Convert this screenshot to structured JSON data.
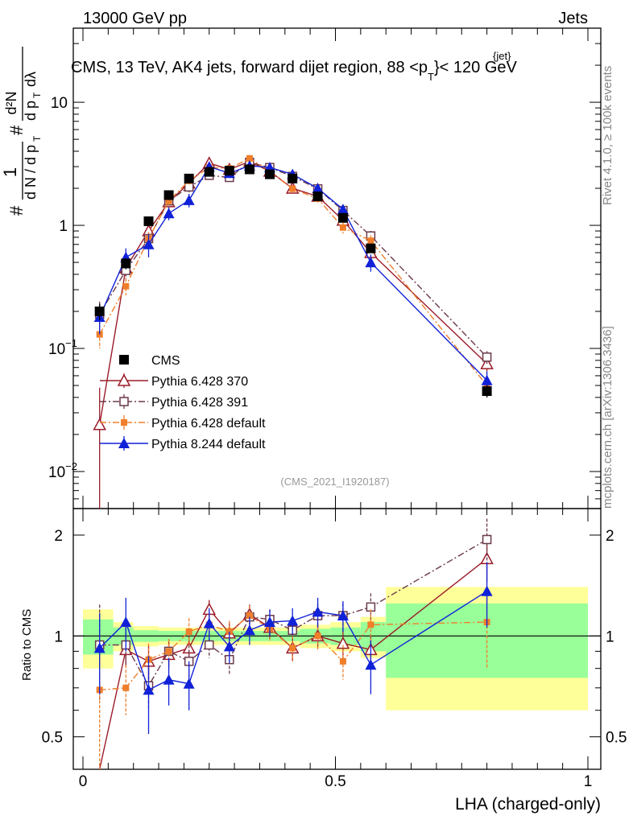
{
  "header": {
    "left": "13000 GeV pp",
    "right": "Jets"
  },
  "title": {
    "main": "CMS, 13 TeV, AK4 jets, forward dijet region, 88 <p",
    "sup": "{jet}",
    "sub": "T",
    "tail": "}< 120 GeV"
  },
  "side_label_top": "Rivet 4.1.0, ≥ 100k events",
  "side_label_bottom": "mcplots.cern.ch [arXiv:1306.3436]",
  "analysis_tag": "(CMS_2021_I1920187)",
  "ylabel_main": {
    "hash": "#",
    "frac1_num": "1",
    "frac1_den": "d N / d p",
    "frac1_den_sub": "T",
    "hash2": "#",
    "frac2_num": "d²N",
    "frac2_den": "d p",
    "frac2_den_sub": "T",
    "frac2_den_tail": "dλ"
  },
  "ratio_ylabel": "Ratio to CMS",
  "xlabel": "LHA (charged-only)",
  "y_ticks_main": [
    {
      "value": 0.01,
      "label": "10",
      "sup": "−2"
    },
    {
      "value": 0.1,
      "label": "10",
      "sup": "−1"
    },
    {
      "value": 1,
      "label": "1",
      "sup": ""
    },
    {
      "value": 10,
      "label": "10",
      "sup": ""
    }
  ],
  "y_ticks_ratio": [
    {
      "value": 0.5,
      "label": "0.5"
    },
    {
      "value": 1,
      "label": "1"
    },
    {
      "value": 2,
      "label": "2"
    }
  ],
  "x_ticks": [
    {
      "value": 0,
      "label": "0"
    },
    {
      "value": 0.5,
      "label": "0.5"
    },
    {
      "value": 1,
      "label": "1"
    }
  ],
  "colors": {
    "data": "#000000",
    "p370": "#9b1c2a",
    "p391": "#6b3a4a",
    "p6def": "#f07e2a",
    "p8": "#1021d8",
    "band_inner": "#99ff99",
    "band_outer": "#ffff99"
  },
  "chart_data": {
    "type": "scatter",
    "xlim": [
      0,
      1
    ],
    "ylim_main": [
      0.005,
      40
    ],
    "ylim_ratio": [
      0.4,
      2.4
    ],
    "y_scale": "log",
    "x": [
      0.033,
      0.085,
      0.13,
      0.17,
      0.21,
      0.25,
      0.29,
      0.33,
      0.37,
      0.415,
      0.465,
      0.515,
      0.57,
      0.8
    ],
    "bin_edges": [
      0,
      0.06,
      0.1,
      0.15,
      0.2,
      0.23,
      0.27,
      0.31,
      0.35,
      0.39,
      0.43,
      0.49,
      0.55,
      0.6,
      1.0
    ],
    "series": [
      {
        "name": "CMS",
        "key": "data",
        "marker": "square-filled",
        "values": [
          0.2,
          0.49,
          1.08,
          1.76,
          2.4,
          2.72,
          2.78,
          2.85,
          2.6,
          2.4,
          1.72,
          1.15,
          0.65,
          0.045
        ],
        "errors": [
          0.03,
          0.05,
          0.08,
          0.1,
          0.14,
          0.15,
          0.15,
          0.15,
          0.14,
          0.13,
          0.1,
          0.08,
          0.05,
          0.005
        ],
        "ratio": [
          1,
          1,
          1,
          1,
          1,
          1,
          1,
          1,
          1,
          1,
          1,
          1,
          1,
          1
        ],
        "ratio_err_inner": [
          0.12,
          0.06,
          0.04,
          0.035,
          0.035,
          0.035,
          0.035,
          0.035,
          0.035,
          0.035,
          0.05,
          0.06,
          0.1,
          0.25
        ],
        "ratio_err_outer": [
          0.2,
          0.1,
          0.07,
          0.06,
          0.06,
          0.06,
          0.06,
          0.06,
          0.06,
          0.06,
          0.08,
          0.1,
          0.14,
          0.4
        ]
      },
      {
        "name": "Pythia 6.428 370",
        "key": "p370",
        "marker": "triangle-open",
        "line": "solid",
        "values": [
          0.024,
          0.45,
          0.9,
          1.55,
          2.2,
          3.2,
          2.85,
          3.3,
          2.75,
          2.0,
          1.72,
          1.1,
          0.6,
          0.075
        ],
        "errors": [
          0.024,
          0.05,
          0.1,
          0.12,
          0.2,
          0.2,
          0.2,
          0.2,
          0.2,
          0.15,
          0.12,
          0.1,
          0.06,
          0.01
        ],
        "ratio": [
          0.12,
          0.91,
          0.84,
          0.88,
          0.92,
          1.2,
          1.02,
          1.16,
          1.06,
          0.92,
          1.0,
          0.95,
          0.91,
          1.7
        ],
        "ratio_err": [
          0.12,
          0.1,
          0.1,
          0.08,
          0.1,
          0.08,
          0.08,
          0.08,
          0.08,
          0.08,
          0.08,
          0.1,
          0.1,
          0.25
        ]
      },
      {
        "name": "Pythia 6.428 391",
        "key": "p391",
        "marker": "square-open",
        "line": "dashdot",
        "values": [
          0.19,
          0.43,
          0.78,
          1.58,
          2.05,
          2.55,
          2.45,
          3.25,
          2.95,
          2.5,
          1.98,
          1.32,
          0.82,
          0.085
        ],
        "errors": [
          0.05,
          0.06,
          0.1,
          0.12,
          0.2,
          0.2,
          0.2,
          0.2,
          0.2,
          0.15,
          0.12,
          0.1,
          0.08,
          0.01
        ],
        "ratio": [
          0.94,
          0.94,
          0.71,
          0.9,
          0.84,
          0.94,
          0.85,
          1.14,
          1.12,
          1.04,
          1.15,
          1.15,
          1.22,
          1.94
        ],
        "ratio_err": [
          0.3,
          0.12,
          0.1,
          0.08,
          0.1,
          0.08,
          0.08,
          0.08,
          0.08,
          0.08,
          0.1,
          0.1,
          0.12,
          0.3
        ]
      },
      {
        "name": "Pythia 6.428 default",
        "key": "p6def",
        "marker": "square-filled",
        "line": "dashdot",
        "values": [
          0.13,
          0.32,
          0.78,
          1.58,
          2.3,
          2.95,
          2.9,
          3.5,
          2.75,
          1.98,
          1.65,
          0.96,
          0.75,
          0.05
        ],
        "errors": [
          0.03,
          0.05,
          0.1,
          0.12,
          0.2,
          0.2,
          0.2,
          0.2,
          0.2,
          0.15,
          0.12,
          0.1,
          0.08,
          0.01
        ],
        "ratio": [
          0.69,
          0.7,
          0.85,
          0.9,
          1.03,
          1.08,
          1.03,
          1.15,
          1.05,
          0.92,
          1.0,
          0.84,
          1.08,
          1.1
        ],
        "ratio_err": [
          0.3,
          0.12,
          0.1,
          0.08,
          0.1,
          0.08,
          0.08,
          0.08,
          0.08,
          0.08,
          0.1,
          0.1,
          0.12,
          0.3
        ]
      },
      {
        "name": "Pythia 8.244 default",
        "key": "p8",
        "marker": "triangle-filled",
        "line": "solid",
        "values": [
          0.18,
          0.55,
          0.7,
          1.25,
          1.6,
          3.0,
          2.65,
          3.05,
          2.95,
          2.6,
          2.0,
          1.35,
          0.5,
          0.055
        ],
        "errors": [
          0.05,
          0.1,
          0.15,
          0.15,
          0.2,
          0.2,
          0.2,
          0.2,
          0.2,
          0.15,
          0.12,
          0.1,
          0.08,
          0.01
        ],
        "ratio": [
          0.92,
          1.1,
          0.69,
          0.74,
          0.72,
          1.09,
          0.93,
          1.04,
          1.1,
          1.11,
          1.18,
          1.15,
          0.82,
          1.36
        ],
        "ratio_err": [
          0.25,
          0.2,
          0.18,
          0.12,
          0.12,
          0.12,
          0.1,
          0.1,
          0.1,
          0.1,
          0.12,
          0.12,
          0.15,
          0.3
        ]
      }
    ]
  }
}
